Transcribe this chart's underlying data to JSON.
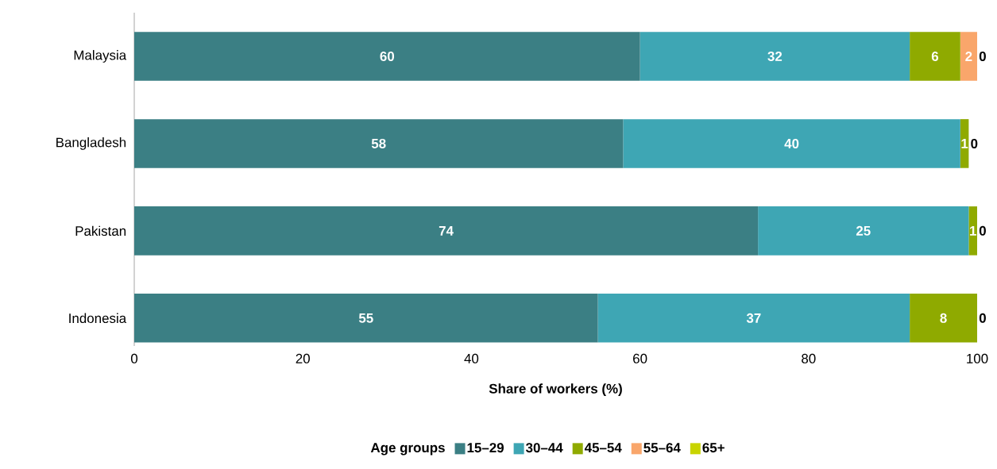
{
  "chart_data": {
    "type": "bar",
    "orientation": "horizontal",
    "stacked": true,
    "xlabel": "Share of workers (%)",
    "legend_title": "Age groups",
    "legend": "bottom",
    "categories": [
      "Malaysia",
      "Bangladesh",
      "Pakistan",
      "Indonesia"
    ],
    "xlim": [
      0,
      100
    ],
    "xticks": [
      0,
      20,
      40,
      60,
      80,
      100
    ],
    "grid": false,
    "series": [
      {
        "name": "15–29",
        "color": "#3b7f84",
        "values": [
          60,
          58,
          74,
          55
        ],
        "value_labels": [
          "60",
          "58",
          "74",
          "55"
        ]
      },
      {
        "name": "30–44",
        "color": "#3ea6b4",
        "values": [
          32,
          40,
          25,
          37
        ],
        "value_labels": [
          "32",
          "40",
          "25",
          "37"
        ]
      },
      {
        "name": "45–54",
        "color": "#8faa00",
        "values": [
          6,
          1,
          1,
          8
        ],
        "value_labels": [
          "6",
          "1",
          "1",
          "8"
        ]
      },
      {
        "name": "55–64",
        "color": "#f9a66b",
        "values": [
          2,
          0,
          0,
          0
        ],
        "value_labels": [
          "2",
          null,
          null,
          null
        ]
      },
      {
        "name": "65+",
        "color": "#c8d400",
        "values": [
          0,
          0,
          0,
          0
        ],
        "value_labels": [
          "0",
          "0",
          "0",
          "0"
        ]
      }
    ]
  }
}
